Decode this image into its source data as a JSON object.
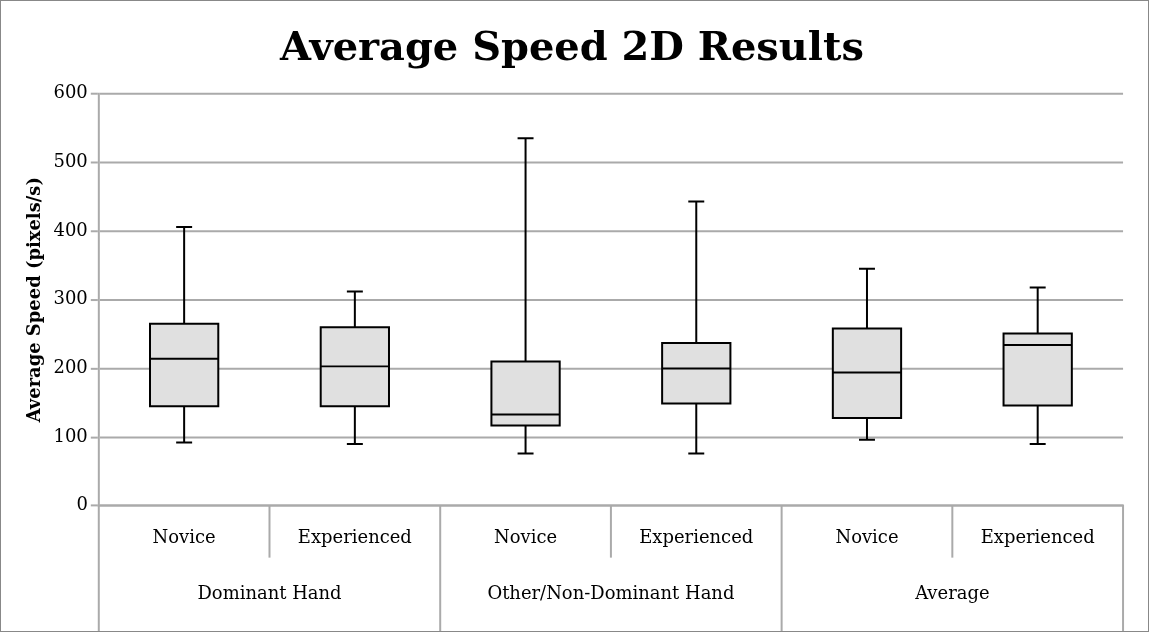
{
  "chart_data": {
    "type": "box",
    "title": "Average Speed 2D Results",
    "ylabel": "Average Speed (pixels/s)",
    "categories": [
      "Novice",
      "Experienced",
      "Novice",
      "Experienced",
      "Novice",
      "Experienced"
    ],
    "annotations": [
      "Dominant Hand",
      "Other/Non-Dominant Hand",
      "Average"
    ],
    "series": [
      {
        "color": "#e0e0e0",
        "boxes": [
          {
            "low": 92,
            "q1": 145,
            "median": 214,
            "q3": 265,
            "high": 406
          },
          {
            "low": 90,
            "q1": 145,
            "median": 203,
            "q3": 260,
            "high": 312
          },
          {
            "low": 76,
            "q1": 117,
            "median": 133,
            "q3": 210,
            "high": 535
          },
          {
            "low": 76,
            "q1": 149,
            "median": 200,
            "q3": 237,
            "high": 443
          },
          {
            "low": 96,
            "q1": 128,
            "median": 194,
            "q3": 258,
            "high": 345
          },
          {
            "low": 90,
            "q1": 146,
            "median": 234,
            "q3": 251,
            "high": 318
          }
        ]
      }
    ],
    "ylim": [
      0,
      600
    ],
    "yticks": [
      0,
      100,
      200,
      300,
      400,
      500,
      600
    ],
    "grid": "y",
    "legend": false
  }
}
